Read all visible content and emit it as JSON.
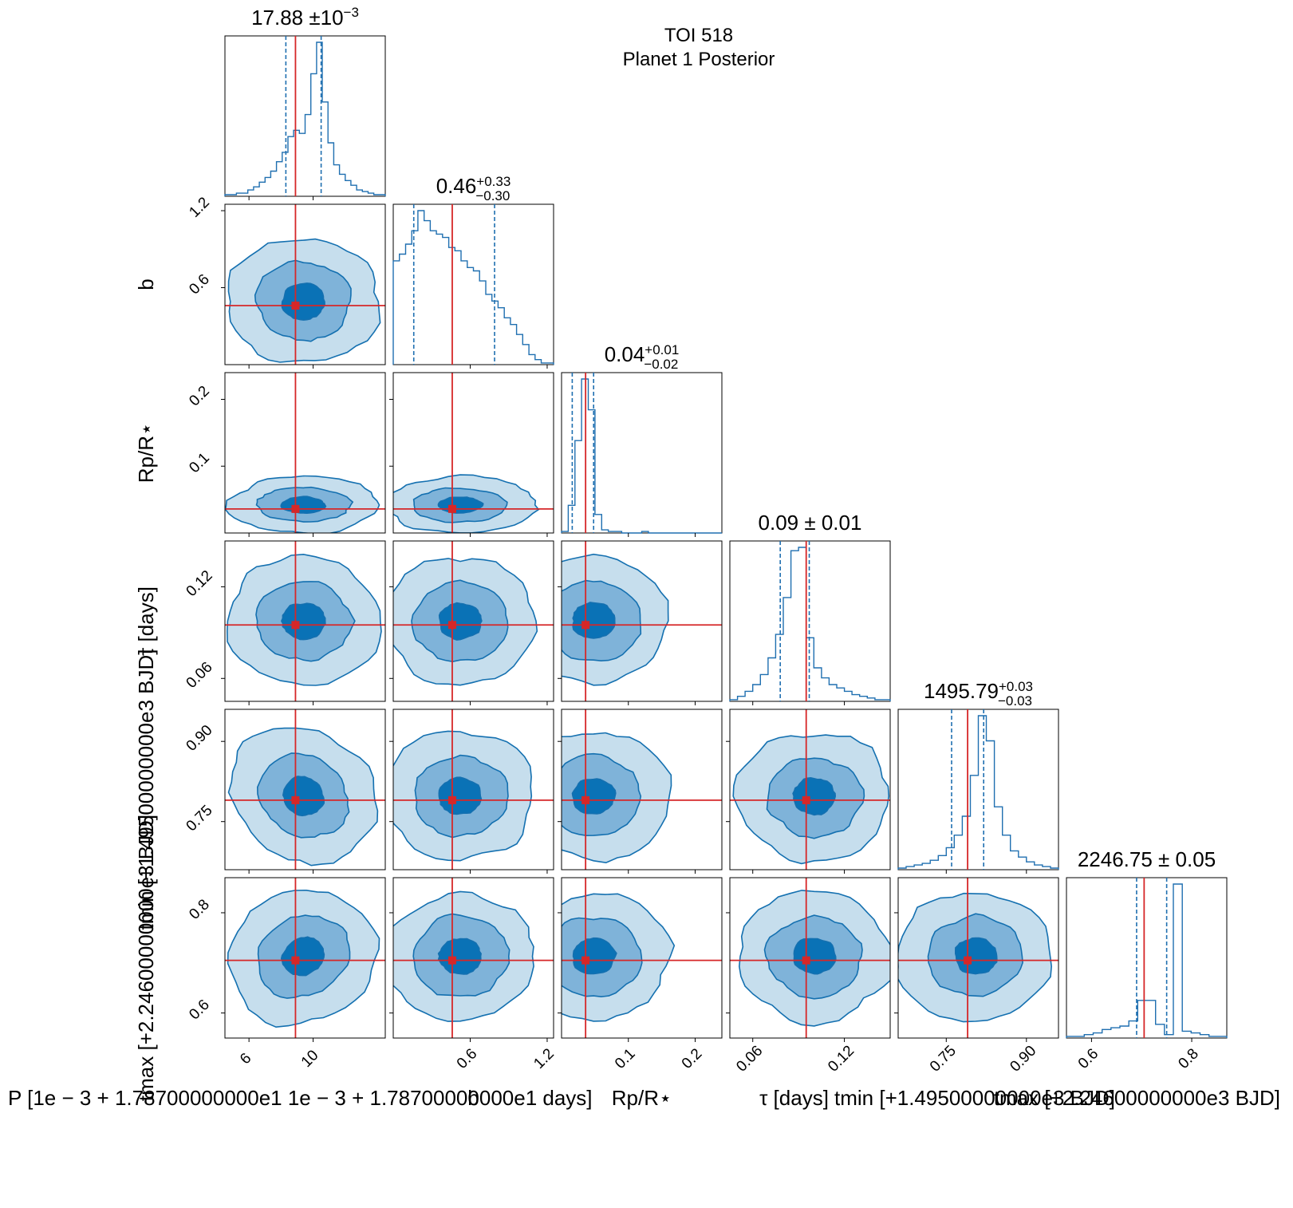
{
  "figure": {
    "title_line1": "TOI 518",
    "title_line2": "Planet 1 Posterior"
  },
  "colors": {
    "contour_light": "#c6deed",
    "contour_mid": "#7fb3d9",
    "contour_dark": "#0a72b6",
    "contour_line": "#1470b0",
    "hist_line": "#1f6fb0",
    "truth": "#d62728"
  },
  "chart_data": {
    "type": "corner",
    "parameters": [
      {
        "key": "P",
        "label_main": "P [1e−3+1.78700000000e1 1e−3+1.78700000000e1  days]",
        "title": "17.88 ± 10⁻³",
        "title_base": "17.88",
        "title_sup": "±10",
        "title_exp": "−3",
        "range": [
          4.5,
          14.5
        ],
        "truth": 8.9,
        "q16": 8.3,
        "q84": 10.5,
        "ticks": [
          6,
          10
        ],
        "tick_labels": [
          "6",
          "10"
        ]
      },
      {
        "key": "b",
        "label_main": "b",
        "title_base": "0.46",
        "title_plus": "+0.33",
        "title_minus": "−0.30",
        "range": [
          0.0,
          1.25
        ],
        "truth": 0.46,
        "q16": 0.16,
        "q84": 0.79,
        "ticks": [
          0.6,
          1.2
        ],
        "tick_labels": [
          "0.6",
          "1.2"
        ]
      },
      {
        "key": "rp",
        "label_main": "Rp/R⋆",
        "title_base": "0.04",
        "title_plus": "+0.01",
        "title_minus": "−0.02",
        "range": [
          0.0,
          0.24
        ],
        "truth": 0.036,
        "q16": 0.016,
        "q84": 0.048,
        "ticks": [
          0.1,
          0.2
        ],
        "tick_labels": [
          "0.1",
          "0.2"
        ]
      },
      {
        "key": "tau",
        "label_main": "τ [days]",
        "title_base": "0.09",
        "title_sym": "± 0.01",
        "range": [
          0.045,
          0.15
        ],
        "truth": 0.095,
        "q16": 0.078,
        "q84": 0.097,
        "ticks": [
          0.06,
          0.12
        ],
        "tick_labels": [
          "0.06",
          "0.12"
        ]
      },
      {
        "key": "tmin",
        "label_main": "tmin [+1.49500000000e3 BJD]",
        "title_base": "1495.79",
        "title_plus": "+0.03",
        "title_minus": "−0.03",
        "range": [
          0.66,
          0.96
        ],
        "truth": 0.79,
        "q16": 0.76,
        "q84": 0.82,
        "ticks": [
          0.75,
          0.9
        ],
        "tick_labels": [
          "0.75",
          "0.90"
        ]
      },
      {
        "key": "tmax",
        "label_main": "tmax [+2.24600000000e3 BJD]",
        "title_base": "2246.75",
        "title_sym": "± 0.05",
        "range": [
          0.55,
          0.87
        ],
        "truth": 0.705,
        "q16": 0.69,
        "q84": 0.75,
        "ticks": [
          0.6,
          0.8
        ],
        "tick_labels": [
          "0.6",
          "0.8"
        ]
      }
    ],
    "row_labels": [
      {
        "main": "b",
        "ticks": [
          "0.6",
          "1.2"
        ]
      },
      {
        "main": "Rp/R⋆",
        "ticks": [
          "0.1",
          "0.2"
        ]
      },
      {
        "main": "τ [days]",
        "ticks": [
          "0.06",
          "0.12"
        ]
      },
      {
        "main": "tmin [+1.49500000000e3 BJD]",
        "ticks": [
          "0.75",
          "0.90"
        ]
      },
      {
        "main": "tmax [+2.24600000000e3 BJD]",
        "ticks": [
          "0.6",
          "0.8"
        ]
      }
    ],
    "x_axis_labels_bottom": {
      "P": "P [1e − 3 + 1.78700000000e1 1e − 3 + 1.78700000000e1   days]",
      "b": "b",
      "rp": "Rp/R⋆",
      "tau": "τ [days]",
      "tmin": "tmin [+1.49500000000e3 BJD]",
      "tmax": "tmax [+2.24600000000e3 BJD]"
    },
    "histograms": [
      [
        1,
        1,
        2,
        2,
        4,
        6,
        9,
        12,
        16,
        22,
        28,
        38,
        42,
        40,
        52,
        78,
        98,
        60,
        34,
        20,
        14,
        10,
        7,
        4,
        3,
        2,
        1,
        1
      ],
      [
        62,
        66,
        72,
        80,
        92,
        86,
        80,
        78,
        76,
        70,
        68,
        62,
        58,
        56,
        50,
        42,
        38,
        34,
        28,
        24,
        18,
        12,
        6,
        3,
        1,
        1
      ],
      [
        1,
        18,
        60,
        100,
        80,
        12,
        2,
        1,
        1,
        0,
        0,
        0,
        1,
        0,
        0,
        0,
        0,
        0,
        0,
        0,
        0,
        0,
        0,
        0
      ],
      [
        1,
        3,
        6,
        10,
        16,
        26,
        40,
        62,
        90,
        92,
        38,
        20,
        14,
        10,
        8,
        6,
        4,
        3,
        2,
        1,
        1
      ],
      [
        1,
        2,
        3,
        4,
        6,
        9,
        14,
        22,
        34,
        60,
        98,
        82,
        40,
        22,
        12,
        8,
        5,
        3,
        2,
        1
      ],
      [
        1,
        1,
        2,
        3,
        5,
        6,
        7,
        10,
        22,
        22,
        8,
        2,
        90,
        4,
        3,
        2,
        1,
        1
      ]
    ],
    "grid": false
  }
}
